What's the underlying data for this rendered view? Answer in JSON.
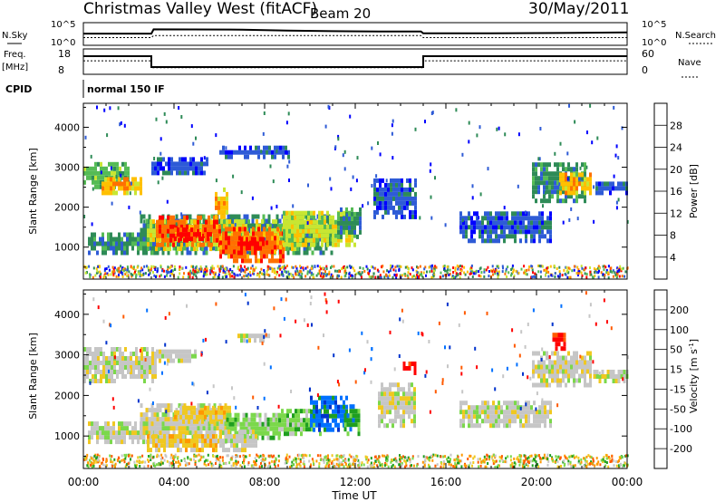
{
  "header": {
    "station": "Christmas Valley West (fitACF)",
    "beam": "Beam 20",
    "date": "30/May/2011"
  },
  "noise_panel": {
    "left_label": "N.Sky",
    "right_label": "N.Search",
    "left_ticks": [
      "10^5",
      "10^0"
    ],
    "right_ticks": [
      "10^5",
      "10^0"
    ],
    "sky_series": {
      "x": [
        0,
        3,
        3.1,
        7,
        9,
        11,
        13,
        14.9,
        15,
        18,
        21,
        24
      ],
      "y": [
        3.2,
        3.2,
        4.6,
        4.5,
        4.2,
        4.0,
        3.9,
        3.9,
        3.3,
        3.3,
        3.4,
        3.6
      ]
    },
    "search_series": {
      "x": [
        0,
        3,
        3.1,
        14.9,
        15,
        24
      ],
      "y": [
        1.9,
        1.9,
        2.6,
        2.6,
        1.9,
        1.9
      ]
    }
  },
  "freq_panel": {
    "left_label_1": "Freq.",
    "left_label_2": "[MHz]",
    "right_label": "Nave",
    "left_ticks": [
      "18",
      "8"
    ],
    "right_ticks": [
      "60",
      "0"
    ],
    "freq_series": {
      "x": [
        0,
        3,
        3,
        15,
        15,
        24
      ],
      "y": [
        15.5,
        15.5,
        10.5,
        10.5,
        15.5,
        15.5
      ]
    },
    "nave_series": {
      "x": [
        0,
        3,
        3,
        15,
        15,
        24
      ],
      "y": [
        34,
        34,
        14,
        14,
        34,
        34
      ]
    }
  },
  "cpid": {
    "label": "CPID",
    "program": "normal 150 IF"
  },
  "chart_data": [
    {
      "type": "heatmap",
      "quantity": "Power",
      "ylabel": "Slant Range [km]",
      "xlabel": "Time UT",
      "x_range_hours": [
        0,
        24
      ],
      "ylim": [
        200,
        4600
      ],
      "ytick_labels": [
        "1000",
        "2000",
        "3000",
        "4000"
      ],
      "colorbar": {
        "label": "Power [dB]",
        "tick_labels": [
          "4",
          "8",
          "12",
          "16",
          "20",
          "24",
          "28"
        ],
        "colors": [
          "#0000ff",
          "#2e5bd6",
          "#2e8b57",
          "#55bb55",
          "#c8e632",
          "#ffc000",
          "#ff7000",
          "#ff0000"
        ]
      },
      "regions": [
        {
          "t0": 0.0,
          "t1": 2.0,
          "r0": 2450,
          "r1": 3100,
          "level": 3
        },
        {
          "t0": 0.8,
          "t1": 2.6,
          "r0": 2300,
          "r1": 2700,
          "level": 5
        },
        {
          "t0": 0.2,
          "t1": 3.2,
          "r0": 800,
          "r1": 1300,
          "level": 2
        },
        {
          "t0": 2.5,
          "t1": 11.0,
          "r0": 800,
          "r1": 1800,
          "level": 2
        },
        {
          "t0": 2.8,
          "t1": 9.6,
          "r0": 900,
          "r1": 1600,
          "level": 4
        },
        {
          "t0": 3.2,
          "t1": 6.0,
          "r0": 1000,
          "r1": 1700,
          "level": 6
        },
        {
          "t0": 4.0,
          "t1": 5.6,
          "r0": 1150,
          "r1": 1450,
          "level": 7
        },
        {
          "t0": 6.0,
          "t1": 8.8,
          "r0": 600,
          "r1": 1400,
          "level": 6
        },
        {
          "t0": 6.8,
          "t1": 8.0,
          "r0": 800,
          "r1": 1200,
          "level": 7
        },
        {
          "t0": 8.8,
          "t1": 12.0,
          "r0": 1000,
          "r1": 1900,
          "level": 4
        },
        {
          "t0": 11.2,
          "t1": 12.2,
          "r0": 1200,
          "r1": 1900,
          "level": 2
        },
        {
          "t0": 5.8,
          "t1": 6.3,
          "r0": 1700,
          "r1": 2400,
          "level": 5
        },
        {
          "t0": 12.8,
          "t1": 14.6,
          "r0": 1700,
          "r1": 2700,
          "level": 1
        },
        {
          "t0": 16.6,
          "t1": 20.6,
          "r0": 1100,
          "r1": 1800,
          "level": 1
        },
        {
          "t0": 19.8,
          "t1": 22.2,
          "r0": 2100,
          "r1": 3100,
          "level": 2
        },
        {
          "t0": 21.0,
          "t1": 22.4,
          "r0": 2300,
          "r1": 2800,
          "level": 5
        },
        {
          "t0": 22.6,
          "t1": 24.0,
          "r0": 2300,
          "r1": 2600,
          "level": 1
        },
        {
          "t0": 6.0,
          "t1": 9.0,
          "r0": 3200,
          "r1": 3450,
          "level": 1
        },
        {
          "t0": 3.0,
          "t1": 5.5,
          "r0": 2800,
          "r1": 3200,
          "level": 1
        }
      ]
    },
    {
      "type": "heatmap",
      "quantity": "Velocity",
      "ylabel": "Slant Range [km]",
      "xlabel": "Time UT",
      "x_range_hours": [
        0,
        24
      ],
      "ylim": [
        200,
        4600
      ],
      "ytick_labels": [
        "1000",
        "2000",
        "3000",
        "4000"
      ],
      "colorbar": {
        "label": "Velocity [m s",
        "label_sup": "-1",
        "label_end": "]",
        "tick_labels": [
          "200",
          "100",
          "50",
          "15",
          "-15",
          "-50",
          "-100",
          "-200"
        ],
        "colors": [
          "#0033cc",
          "#0070ff",
          "#1f9f1f",
          "#7bd84b",
          "#c6c6c6",
          "#f0c820",
          "#ff9800",
          "#ff5a00",
          "#ff0000"
        ]
      },
      "regions": [
        {
          "t0": 0.0,
          "t1": 3.2,
          "r0": 2300,
          "r1": 3100,
          "level": 4
        },
        {
          "t0": 0.2,
          "t1": 3.2,
          "r0": 800,
          "r1": 1300,
          "level": 4
        },
        {
          "t0": 2.5,
          "t1": 6.3,
          "r0": 800,
          "r1": 1700,
          "level": 4
        },
        {
          "t0": 2.8,
          "t1": 6.0,
          "r0": 600,
          "r1": 1000,
          "level": 5
        },
        {
          "t0": 4.0,
          "t1": 6.5,
          "r0": 1300,
          "r1": 1700,
          "level": 5
        },
        {
          "t0": 6.3,
          "t1": 8.6,
          "r0": 900,
          "r1": 1500,
          "level": 3
        },
        {
          "t0": 6.0,
          "t1": 7.6,
          "r0": 600,
          "r1": 1100,
          "level": 4
        },
        {
          "t0": 8.6,
          "t1": 10.4,
          "r0": 1000,
          "r1": 1600,
          "level": 3
        },
        {
          "t0": 10.0,
          "t1": 11.6,
          "r0": 1100,
          "r1": 1900,
          "level": 1
        },
        {
          "t0": 11.5,
          "t1": 12.1,
          "r0": 1000,
          "r1": 1700,
          "level": 2
        },
        {
          "t0": 13.0,
          "t1": 14.6,
          "r0": 1200,
          "r1": 2300,
          "level": 4
        },
        {
          "t0": 14.1,
          "t1": 14.6,
          "r0": 2500,
          "r1": 2800,
          "level": 8
        },
        {
          "t0": 16.6,
          "t1": 20.6,
          "r0": 1200,
          "r1": 1800,
          "level": 4
        },
        {
          "t0": 19.8,
          "t1": 22.4,
          "r0": 2200,
          "r1": 3000,
          "level": 4
        },
        {
          "t0": 22.5,
          "t1": 24.0,
          "r0": 2300,
          "r1": 2600,
          "level": 4
        },
        {
          "t0": 20.7,
          "t1": 21.3,
          "r0": 3100,
          "r1": 3500,
          "level": 8
        },
        {
          "t0": 6.8,
          "t1": 8.2,
          "r0": 3300,
          "r1": 3500,
          "level": 4
        },
        {
          "t0": 3.2,
          "t1": 5.0,
          "r0": 2800,
          "r1": 3100,
          "level": 4
        }
      ]
    }
  ],
  "x_tick_labels": [
    "00:00",
    "04:00",
    "08:00",
    "12:00",
    "16:00",
    "20:00",
    "00:00"
  ],
  "x_axis_title": "Time UT"
}
